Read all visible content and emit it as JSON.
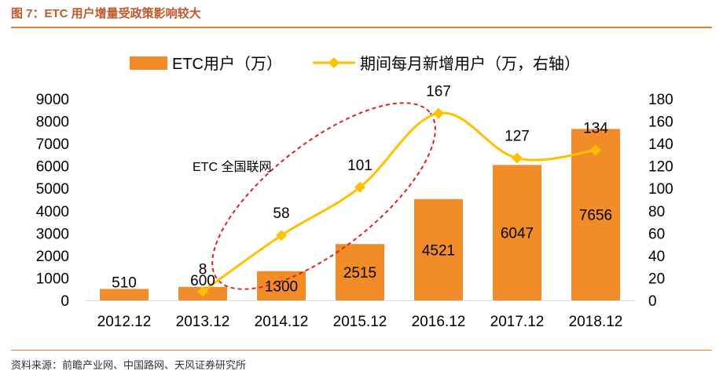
{
  "header": {
    "title": "图 7：ETC 用户增量受政策影响较大"
  },
  "footer": {
    "source": "资料来源：前瞻产业网、中国路网、天风证券研究所"
  },
  "colors": {
    "bar": "#F28C28",
    "line": "#FFC000",
    "annotation": "#E02020",
    "title": "#C1572A",
    "rule": "#E67E2C"
  },
  "chart_data": {
    "type": "bar+line",
    "categories": [
      "2012.12",
      "2013.12",
      "2014.12",
      "2015.12",
      "2016.12",
      "2017.12",
      "2018.12"
    ],
    "series": [
      {
        "name": "ETC用户（万）",
        "type": "bar",
        "axis": "left",
        "values": [
          510,
          600,
          1300,
          2515,
          4521,
          6047,
          7656
        ]
      },
      {
        "name": "期间每月新增用户（万，右轴）",
        "type": "line",
        "axis": "right",
        "values": [
          null,
          8,
          58,
          101,
          167,
          127,
          134
        ]
      }
    ],
    "left_axis": {
      "min": 0,
      "max": 9000,
      "ticks": [
        0,
        1000,
        2000,
        3000,
        4000,
        5000,
        6000,
        7000,
        8000,
        9000
      ]
    },
    "right_axis": {
      "min": 0,
      "max": 180,
      "ticks": [
        0,
        20,
        40,
        60,
        80,
        100,
        120,
        140,
        160,
        180
      ]
    },
    "annotation": {
      "text": "ETC 全国联网",
      "shape": "dashed-ellipse",
      "encloses": [
        "2013.12",
        "2014.12",
        "2015.12",
        "2016.12"
      ]
    },
    "legend": {
      "position": "top"
    }
  }
}
